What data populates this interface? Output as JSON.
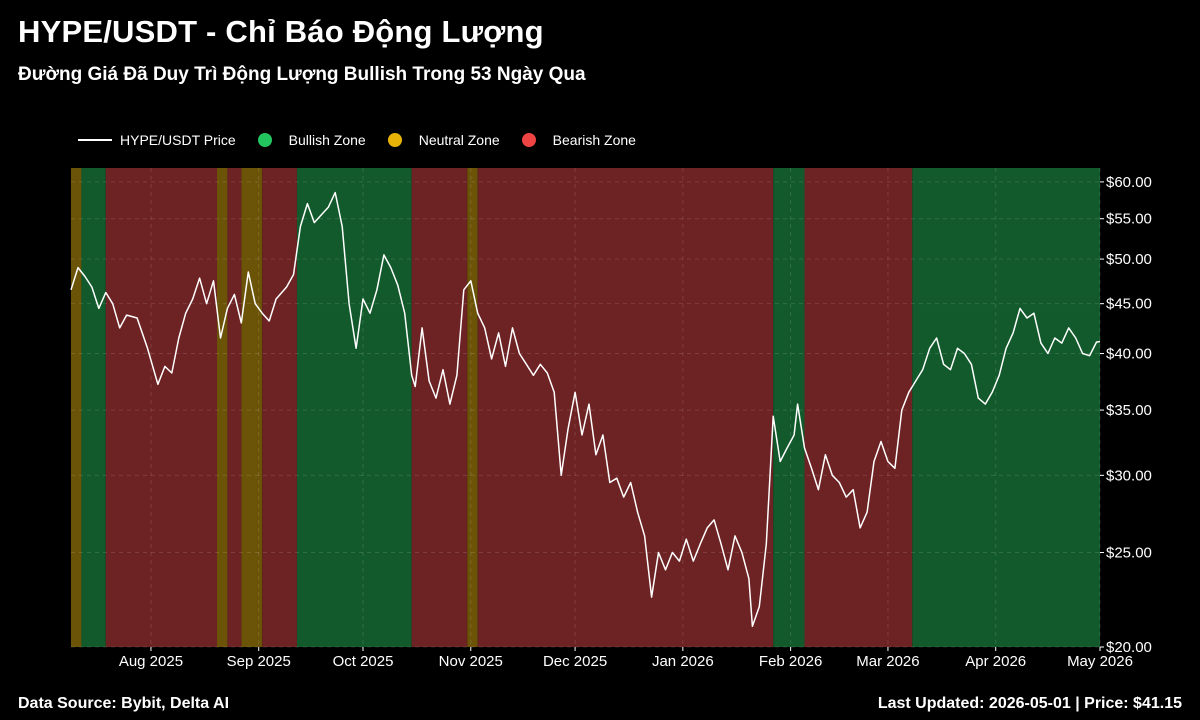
{
  "header": {
    "title": "HYPE/USDT - Chỉ Báo Động Lượng",
    "subtitle": "Đường Giá Đã Duy Trì Động Lượng Bullish Trong 53 Ngày Qua"
  },
  "footer": {
    "source": "Data Source: Bybit, Delta AI",
    "updated": "Last Updated: 2026-05-01 | Price: $41.15"
  },
  "colors": {
    "bullish": "#1f9d4a",
    "neutral": "#c89a12",
    "bearish": "#c9393a",
    "price_line": "#ffffff"
  },
  "chart_data": {
    "type": "line",
    "title": "HYPE/USDT - Chỉ Báo Động Lượng",
    "y_scale": "log",
    "ylim": [
      20,
      62
    ],
    "y_ticks": [
      {
        "value": 60,
        "label": "$60.00"
      },
      {
        "value": 55,
        "label": "$55.00"
      },
      {
        "value": 50,
        "label": "$50.00"
      },
      {
        "value": 45,
        "label": "$45.00"
      },
      {
        "value": 40,
        "label": "$40.00"
      },
      {
        "value": 35,
        "label": "$35.00"
      },
      {
        "value": 30,
        "label": "$30.00"
      },
      {
        "value": 25,
        "label": "$25.00"
      },
      {
        "value": 20,
        "label": "$20.00"
      }
    ],
    "xlim": [
      "2025-07-09",
      "2026-05-01"
    ],
    "x_ticks": [
      {
        "date": "2025-08-01",
        "label": "Aug 2025"
      },
      {
        "date": "2025-09-01",
        "label": "Sep 2025"
      },
      {
        "date": "2025-10-01",
        "label": "Oct 2025"
      },
      {
        "date": "2025-11-01",
        "label": "Nov 2025"
      },
      {
        "date": "2025-12-01",
        "label": "Dec 2025"
      },
      {
        "date": "2026-01-01",
        "label": "Jan 2026"
      },
      {
        "date": "2026-02-01",
        "label": "Feb 2026"
      },
      {
        "date": "2026-03-01",
        "label": "Mar 2026"
      },
      {
        "date": "2026-04-01",
        "label": "Apr 2026"
      },
      {
        "date": "2026-05-01",
        "label": "May 2026"
      }
    ],
    "grid": true,
    "legend_position": "top-left",
    "legend": [
      {
        "label": "HYPE/USDT Price",
        "kind": "line",
        "color": "#ffffff"
      },
      {
        "label": "Bullish Zone",
        "kind": "dot",
        "color": "#22c55e"
      },
      {
        "label": "Neutral Zone",
        "kind": "dot",
        "color": "#eab308"
      },
      {
        "label": "Bearish Zone",
        "kind": "dot",
        "color": "#ef4444"
      }
    ],
    "zones": [
      {
        "start": "2025-07-09",
        "end": "2025-07-12",
        "state": "neutral"
      },
      {
        "start": "2025-07-12",
        "end": "2025-07-19",
        "state": "bullish"
      },
      {
        "start": "2025-07-19",
        "end": "2025-08-20",
        "state": "bearish"
      },
      {
        "start": "2025-08-20",
        "end": "2025-08-23",
        "state": "neutral"
      },
      {
        "start": "2025-08-23",
        "end": "2025-08-27",
        "state": "bearish"
      },
      {
        "start": "2025-08-27",
        "end": "2025-09-02",
        "state": "neutral"
      },
      {
        "start": "2025-09-02",
        "end": "2025-09-12",
        "state": "bearish"
      },
      {
        "start": "2025-09-12",
        "end": "2025-10-15",
        "state": "bullish"
      },
      {
        "start": "2025-10-15",
        "end": "2025-10-31",
        "state": "bearish"
      },
      {
        "start": "2025-10-31",
        "end": "2025-11-03",
        "state": "neutral"
      },
      {
        "start": "2025-11-03",
        "end": "2026-01-27",
        "state": "bearish"
      },
      {
        "start": "2026-01-27",
        "end": "2026-02-05",
        "state": "bullish"
      },
      {
        "start": "2026-02-05",
        "end": "2026-03-08",
        "state": "bearish"
      },
      {
        "start": "2026-03-08",
        "end": "2026-05-01",
        "state": "bullish"
      }
    ],
    "series": [
      {
        "name": "HYPE/USDT Price",
        "points": [
          [
            "2025-07-09",
            46.5
          ],
          [
            "2025-07-11",
            49.0
          ],
          [
            "2025-07-13",
            48.0
          ],
          [
            "2025-07-15",
            46.8
          ],
          [
            "2025-07-17",
            44.5
          ],
          [
            "2025-07-19",
            46.2
          ],
          [
            "2025-07-21",
            45.0
          ],
          [
            "2025-07-23",
            42.5
          ],
          [
            "2025-07-25",
            43.8
          ],
          [
            "2025-07-28",
            43.5
          ],
          [
            "2025-07-31",
            40.5
          ],
          [
            "2025-08-03",
            37.2
          ],
          [
            "2025-08-05",
            38.8
          ],
          [
            "2025-08-07",
            38.2
          ],
          [
            "2025-08-09",
            41.5
          ],
          [
            "2025-08-11",
            44.0
          ],
          [
            "2025-08-13",
            45.5
          ],
          [
            "2025-08-15",
            47.8
          ],
          [
            "2025-08-17",
            45.0
          ],
          [
            "2025-08-19",
            47.5
          ],
          [
            "2025-08-21",
            41.5
          ],
          [
            "2025-08-23",
            44.5
          ],
          [
            "2025-08-25",
            46.0
          ],
          [
            "2025-08-27",
            43.0
          ],
          [
            "2025-08-29",
            48.5
          ],
          [
            "2025-08-31",
            45.0
          ],
          [
            "2025-09-02",
            44.0
          ],
          [
            "2025-09-04",
            43.2
          ],
          [
            "2025-09-06",
            45.5
          ],
          [
            "2025-09-09",
            46.8
          ],
          [
            "2025-09-11",
            48.2
          ],
          [
            "2025-09-13",
            54.0
          ],
          [
            "2025-09-15",
            57.0
          ],
          [
            "2025-09-17",
            54.5
          ],
          [
            "2025-09-19",
            55.5
          ],
          [
            "2025-09-21",
            56.5
          ],
          [
            "2025-09-23",
            58.5
          ],
          [
            "2025-09-25",
            54.0
          ],
          [
            "2025-09-27",
            45.0
          ],
          [
            "2025-09-29",
            40.5
          ],
          [
            "2025-10-01",
            45.5
          ],
          [
            "2025-10-03",
            44.0
          ],
          [
            "2025-10-05",
            46.5
          ],
          [
            "2025-10-07",
            50.5
          ],
          [
            "2025-10-09",
            49.0
          ],
          [
            "2025-10-11",
            47.0
          ],
          [
            "2025-10-13",
            44.0
          ],
          [
            "2025-10-15",
            38.0
          ],
          [
            "2025-10-16",
            37.0
          ],
          [
            "2025-10-18",
            42.5
          ],
          [
            "2025-10-20",
            37.5
          ],
          [
            "2025-10-22",
            36.0
          ],
          [
            "2025-10-24",
            38.5
          ],
          [
            "2025-10-26",
            35.5
          ],
          [
            "2025-10-28",
            38.0
          ],
          [
            "2025-10-30",
            46.5
          ],
          [
            "2025-11-01",
            47.5
          ],
          [
            "2025-11-03",
            44.0
          ],
          [
            "2025-11-05",
            42.5
          ],
          [
            "2025-11-07",
            39.5
          ],
          [
            "2025-11-09",
            42.0
          ],
          [
            "2025-11-11",
            38.8
          ],
          [
            "2025-11-13",
            42.5
          ],
          [
            "2025-11-15",
            40.0
          ],
          [
            "2025-11-17",
            39.0
          ],
          [
            "2025-11-19",
            38.0
          ],
          [
            "2025-11-21",
            39.0
          ],
          [
            "2025-11-23",
            38.2
          ],
          [
            "2025-11-25",
            36.5
          ],
          [
            "2025-11-27",
            30.0
          ],
          [
            "2025-11-29",
            33.5
          ],
          [
            "2025-12-01",
            36.5
          ],
          [
            "2025-12-03",
            33.0
          ],
          [
            "2025-12-05",
            35.5
          ],
          [
            "2025-12-07",
            31.5
          ],
          [
            "2025-12-09",
            33.0
          ],
          [
            "2025-12-11",
            29.5
          ],
          [
            "2025-12-13",
            29.8
          ],
          [
            "2025-12-15",
            28.5
          ],
          [
            "2025-12-17",
            29.5
          ],
          [
            "2025-12-19",
            27.5
          ],
          [
            "2025-12-21",
            26.0
          ],
          [
            "2025-12-23",
            22.5
          ],
          [
            "2025-12-25",
            25.0
          ],
          [
            "2025-12-27",
            24.0
          ],
          [
            "2025-12-29",
            25.0
          ],
          [
            "2025-12-31",
            24.5
          ],
          [
            "2026-01-02",
            25.8
          ],
          [
            "2026-01-04",
            24.5
          ],
          [
            "2026-01-06",
            25.5
          ],
          [
            "2026-01-08",
            26.5
          ],
          [
            "2026-01-10",
            27.0
          ],
          [
            "2026-01-12",
            25.5
          ],
          [
            "2026-01-14",
            24.0
          ],
          [
            "2026-01-16",
            26.0
          ],
          [
            "2026-01-18",
            25.0
          ],
          [
            "2026-01-20",
            23.5
          ],
          [
            "2026-01-21",
            21.0
          ],
          [
            "2026-01-23",
            22.0
          ],
          [
            "2026-01-25",
            25.5
          ],
          [
            "2026-01-27",
            34.5
          ],
          [
            "2026-01-29",
            31.0
          ],
          [
            "2026-01-31",
            32.0
          ],
          [
            "2026-02-02",
            33.0
          ],
          [
            "2026-02-03",
            35.5
          ],
          [
            "2026-02-05",
            32.0
          ],
          [
            "2026-02-07",
            30.5
          ],
          [
            "2026-02-09",
            29.0
          ],
          [
            "2026-02-11",
            31.5
          ],
          [
            "2026-02-13",
            30.0
          ],
          [
            "2026-02-15",
            29.5
          ],
          [
            "2026-02-17",
            28.5
          ],
          [
            "2026-02-19",
            29.0
          ],
          [
            "2026-02-21",
            26.5
          ],
          [
            "2026-02-23",
            27.5
          ],
          [
            "2026-02-25",
            31.0
          ],
          [
            "2026-02-27",
            32.5
          ],
          [
            "2026-03-01",
            31.0
          ],
          [
            "2026-03-03",
            30.5
          ],
          [
            "2026-03-05",
            35.0
          ],
          [
            "2026-03-07",
            36.5
          ],
          [
            "2026-03-09",
            37.5
          ],
          [
            "2026-03-11",
            38.5
          ],
          [
            "2026-03-13",
            40.5
          ],
          [
            "2026-03-15",
            41.5
          ],
          [
            "2026-03-17",
            39.0
          ],
          [
            "2026-03-19",
            38.5
          ],
          [
            "2026-03-21",
            40.5
          ],
          [
            "2026-03-23",
            40.0
          ],
          [
            "2026-03-25",
            39.0
          ],
          [
            "2026-03-27",
            36.0
          ],
          [
            "2026-03-29",
            35.5
          ],
          [
            "2026-03-31",
            36.5
          ],
          [
            "2026-04-02",
            38.0
          ],
          [
            "2026-04-04",
            40.5
          ],
          [
            "2026-04-06",
            42.0
          ],
          [
            "2026-04-08",
            44.5
          ],
          [
            "2026-04-10",
            43.5
          ],
          [
            "2026-04-12",
            44.0
          ],
          [
            "2026-04-14",
            41.0
          ],
          [
            "2026-04-16",
            40.0
          ],
          [
            "2026-04-18",
            41.5
          ],
          [
            "2026-04-20",
            41.0
          ],
          [
            "2026-04-22",
            42.5
          ],
          [
            "2026-04-24",
            41.5
          ],
          [
            "2026-04-26",
            40.0
          ],
          [
            "2026-04-28",
            39.8
          ],
          [
            "2026-04-30",
            41.1
          ],
          [
            "2026-05-01",
            41.15
          ]
        ]
      }
    ]
  }
}
